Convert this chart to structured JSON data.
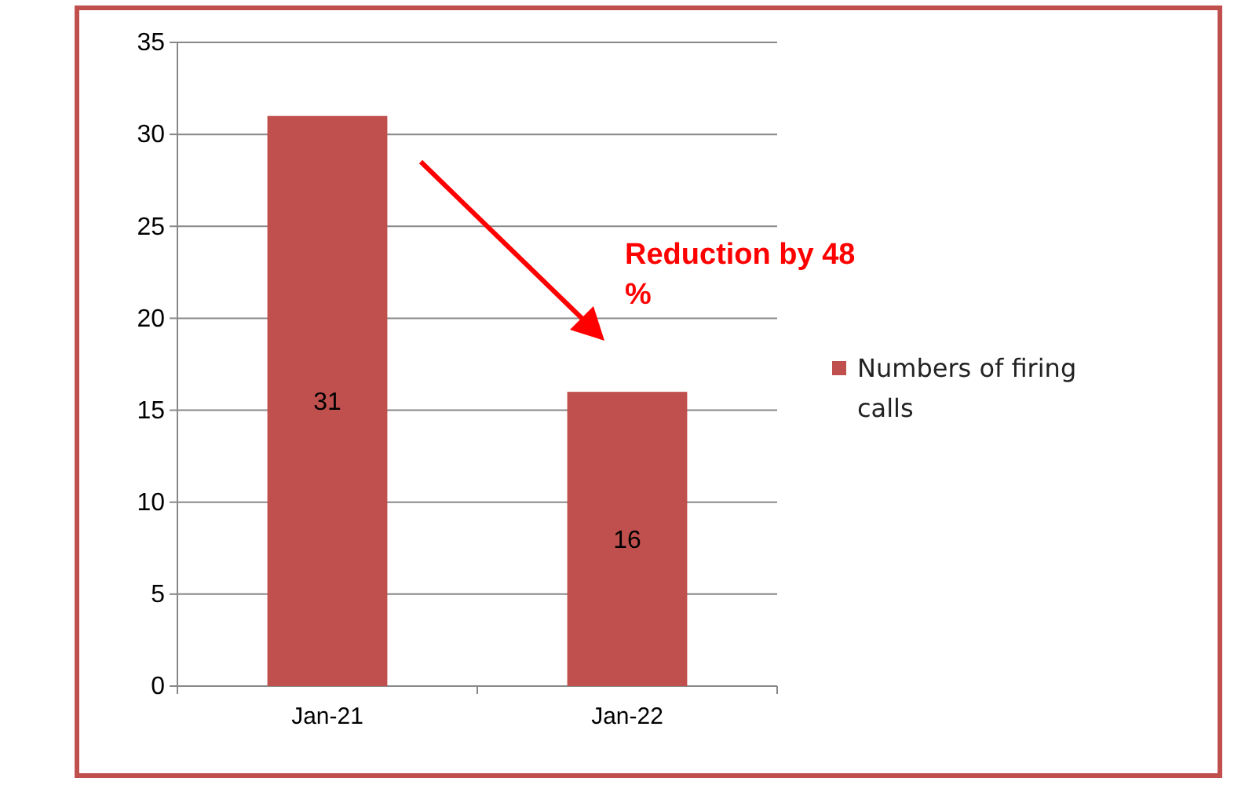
{
  "chart_data": {
    "type": "bar",
    "categories": [
      "Jan-21",
      "Jan-22"
    ],
    "series": [
      {
        "name": "Numbers of firing calls",
        "color": "#c0504d",
        "values": [
          31,
          16
        ]
      }
    ],
    "ylim": [
      0,
      35
    ],
    "yticks": [
      0,
      5,
      10,
      15,
      20,
      25,
      30,
      35
    ],
    "grid": "y",
    "legend": "right",
    "data_labels": true,
    "annotations": [
      "Reduction by 48 %"
    ]
  }
}
